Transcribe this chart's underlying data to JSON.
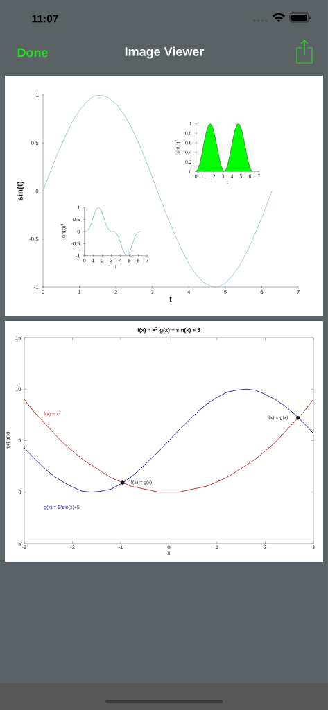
{
  "chart_data": [
    {
      "type": "other",
      "title": "Image Viewer",
      "annotations": [
        "11:07",
        "Done"
      ]
    },
    {
      "type": "line",
      "xlabel": "t",
      "ylabel": "sin(t)",
      "x": [
        0,
        0.2,
        0.4,
        0.6,
        0.8,
        1,
        1.2,
        1.4,
        1.6,
        1.8,
        2,
        2.2,
        2.4,
        2.6,
        2.8,
        3,
        3.2,
        3.4,
        3.6,
        3.8,
        4,
        4.2,
        4.4,
        4.6,
        4.8,
        5,
        5.2,
        5.4,
        5.6,
        5.8,
        6,
        6.2,
        6.28
      ],
      "series": [
        {
          "color": "#7ab4c4",
          "values": [
            0,
            0.2,
            0.39,
            0.56,
            0.72,
            0.84,
            0.93,
            0.99,
            1,
            0.97,
            0.91,
            0.81,
            0.68,
            0.52,
            0.34,
            0.14,
            -0.06,
            -0.26,
            -0.44,
            -0.61,
            -0.76,
            -0.87,
            -0.95,
            -0.99,
            -1,
            -0.96,
            -0.88,
            -0.77,
            -0.63,
            -0.46,
            -0.28,
            -0.08,
            0
          ]
        }
      ],
      "xlim": [
        0,
        7
      ],
      "ylim": [
        -1,
        1
      ],
      "xticks": [
        0,
        1,
        2,
        3,
        4,
        5,
        6,
        7
      ],
      "yticks": [
        -1,
        -0.5,
        0,
        0.5,
        1
      ]
    },
    {
      "type": "area",
      "xlabel": "t",
      "ylabel": "(sin(t))$^{2}$",
      "x": [
        0,
        0.2,
        0.4,
        0.6,
        0.8,
        1,
        1.2,
        1.4,
        1.6,
        1.8,
        2,
        2.2,
        2.4,
        2.6,
        2.8,
        3,
        3.2,
        3.4,
        3.6,
        3.8,
        4,
        4.2,
        4.4,
        4.6,
        4.8,
        5,
        5.2,
        5.4,
        5.6,
        5.8,
        6,
        6.2,
        6.28
      ],
      "series": [
        {
          "color": "#00ff00",
          "values": [
            0,
            0.04,
            0.15,
            0.32,
            0.51,
            0.71,
            0.87,
            0.97,
            1,
            0.95,
            0.83,
            0.65,
            0.46,
            0.27,
            0.11,
            0.02,
            0,
            0.07,
            0.2,
            0.37,
            0.57,
            0.76,
            0.91,
            0.99,
            0.99,
            0.92,
            0.78,
            0.6,
            0.4,
            0.22,
            0.08,
            0.01,
            0
          ]
        }
      ],
      "xlim": [
        0,
        7
      ],
      "ylim": [
        0,
        1
      ],
      "xticks": [
        0,
        1,
        2,
        3,
        4,
        5,
        6,
        7
      ],
      "yticks": [
        0,
        0.2,
        0.4,
        0.6,
        0.8,
        1
      ]
    },
    {
      "type": "line",
      "xlabel": "t",
      "ylabel": "(sin(t))$^{3}$",
      "x": [
        0,
        0.2,
        0.4,
        0.6,
        0.8,
        1,
        1.2,
        1.4,
        1.6,
        1.8,
        2,
        2.2,
        2.4,
        2.6,
        2.8,
        3,
        3.2,
        3.4,
        3.6,
        3.8,
        4,
        4.2,
        4.4,
        4.6,
        4.8,
        5,
        5.2,
        5.4,
        5.6,
        5.8,
        6,
        6.2,
        6.28
      ],
      "series": [
        {
          "color": "#7ab4c4",
          "values": [
            0,
            0.01,
            0.06,
            0.18,
            0.37,
            0.6,
            0.81,
            0.96,
            1,
            0.92,
            0.75,
            0.53,
            0.31,
            0.14,
            0.04,
            0,
            0,
            -0.02,
            -0.09,
            -0.23,
            -0.43,
            -0.66,
            -0.86,
            -0.98,
            -0.99,
            -0.88,
            -0.69,
            -0.46,
            -0.25,
            -0.1,
            -0.02,
            0,
            0
          ]
        }
      ],
      "xlim": [
        0,
        7
      ],
      "ylim": [
        -1,
        1
      ],
      "xticks": [
        0,
        1,
        2,
        3,
        4,
        5,
        6,
        7
      ],
      "yticks": [
        -1,
        -0.5,
        0,
        0.5,
        1
      ]
    },
    {
      "type": "line",
      "title": "f(x) = x$^{2}$    g(x) = sin(x) + 5",
      "xlabel": "x",
      "ylabel": "f(x)  g(x)",
      "x": [
        -3,
        -2.8,
        -2.6,
        -2.4,
        -2.2,
        -2,
        -1.8,
        -1.6,
        -1.4,
        -1.2,
        -1,
        -0.8,
        -0.6,
        -0.4,
        -0.2,
        0,
        0.2,
        0.4,
        0.6,
        0.8,
        1,
        1.2,
        1.4,
        1.6,
        1.8,
        2,
        2.2,
        2.4,
        2.6,
        2.8,
        3
      ],
      "series": [
        {
          "name": "f(x) = x$^{2}$",
          "color": "#cc3333",
          "values": [
            9,
            7.8,
            6.8,
            5.8,
            4.8,
            4,
            3.2,
            2.6,
            2,
            1.4,
            1,
            0.6,
            0.4,
            0.2,
            0,
            0,
            0,
            0.2,
            0.4,
            0.6,
            1,
            1.4,
            2,
            2.6,
            3.2,
            4,
            4.8,
            5.8,
            6.8,
            7.8,
            9
          ]
        },
        {
          "name": "g(x) = 5*sin(x)+5",
          "color": "#2b2bb0",
          "values": [
            4.3,
            3.3,
            2.4,
            1.6,
            1,
            0.5,
            0.1,
            0,
            0.1,
            0.3,
            0.8,
            1.4,
            2.2,
            3.1,
            4,
            5,
            6,
            6.9,
            7.8,
            8.6,
            9.2,
            9.7,
            9.9,
            10,
            9.9,
            9.5,
            9,
            8.4,
            7.6,
            6.7,
            5.7
          ]
        },
        {
          "type": "scatter",
          "color": "#000000",
          "x": [
            -0.96,
            2.68
          ],
          "values": [
            0.92,
            7.21
          ]
        }
      ],
      "annotations": [
        {
          "text": "f(x) = g(x)",
          "x": -0.96,
          "y": 0.92
        },
        {
          "text": "f(x) = g(x)",
          "x": 2.68,
          "y": 7.21
        }
      ],
      "xlim": [
        -3,
        3
      ],
      "ylim": [
        -5,
        15
      ],
      "xticks": [
        -3,
        -2,
        -1,
        0,
        1,
        2,
        3
      ],
      "yticks": [
        -5,
        0,
        5,
        10,
        15
      ]
    }
  ]
}
